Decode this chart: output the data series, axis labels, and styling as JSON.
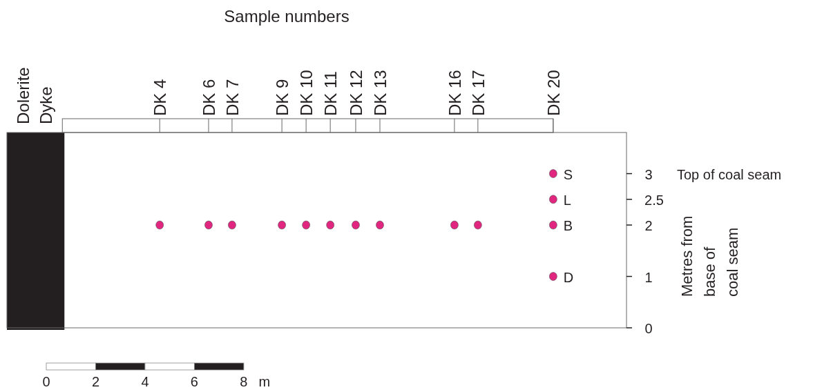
{
  "chart_data": {
    "type": "scatter",
    "title": "Sample numbers",
    "ylabel": "Metres from base of coal seam",
    "xlabel": "m",
    "xlim": [
      -1.6,
      23.5
    ],
    "xticks": [
      0,
      2,
      4,
      6,
      8
    ],
    "ylim": [
      0,
      3.8
    ],
    "yticks": [
      0,
      1,
      2,
      2.5,
      3
    ],
    "series": [
      {
        "color": "#e0267f",
        "x": [
          4.59,
          6.57,
          7.52,
          9.54,
          10.52,
          11.5,
          12.53,
          13.51,
          16.53,
          17.48,
          20.53,
          20.53,
          20.53,
          20.53
        ],
        "values": [
          2,
          2,
          2,
          2,
          2,
          2,
          2,
          2,
          2,
          2,
          3,
          2.5,
          2,
          1
        ],
        "value_labels": [
          null,
          null,
          null,
          null,
          null,
          null,
          null,
          null,
          null,
          null,
          "S",
          "L",
          "B",
          "D"
        ]
      }
    ],
    "marker": "circle",
    "bands": [
      {
        "axis": "x",
        "from": -1.6,
        "to": 0.73,
        "label": "Dolerite Dyke",
        "color": "#231f20"
      }
    ],
    "annotations": [
      {
        "text": "DK 4",
        "x": 4.59
      },
      {
        "text": "DK 6",
        "x": 6.57
      },
      {
        "text": "DK 7",
        "x": 7.52
      },
      {
        "text": "DK 9",
        "x": 9.54
      },
      {
        "text": "DK 10",
        "x": 10.52
      },
      {
        "text": "DK 11",
        "x": 11.5
      },
      {
        "text": "DK 12",
        "x": 12.53
      },
      {
        "text": "DK 13",
        "x": 13.51
      },
      {
        "text": "DK 16",
        "x": 16.53
      },
      {
        "text": "DK 17",
        "x": 17.48
      },
      {
        "text": "DK 20",
        "x": 20.53
      },
      "Top of coal seam"
    ],
    "grid": false
  }
}
